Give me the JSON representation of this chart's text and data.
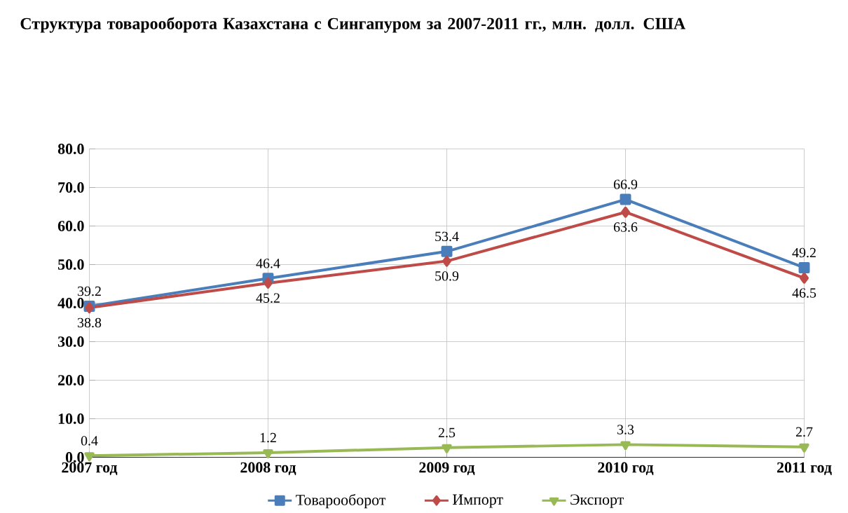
{
  "chart_data": {
    "type": "line",
    "title": "Структура товарооборота Казахстана с Сингапуром за 2007-2011 гг., млн. долл. США",
    "categories": [
      "2007 год",
      "2008 год",
      "2009 год",
      "2010 год",
      "2011 год"
    ],
    "series": [
      {
        "name": "Товарооборот",
        "color": "#4a7ebb",
        "marker": "square",
        "values": [
          39.2,
          46.4,
          53.4,
          66.9,
          49.2
        ]
      },
      {
        "name": "Импорт",
        "color": "#be4b48",
        "marker": "diamond",
        "values": [
          38.8,
          45.2,
          50.9,
          63.6,
          46.5
        ]
      },
      {
        "name": "Экспорт",
        "color": "#98b954",
        "marker": "triangle",
        "values": [
          0.4,
          1.2,
          2.5,
          3.3,
          2.7
        ]
      }
    ],
    "ylim": [
      0,
      80
    ],
    "yticks": [
      {
        "value": 0,
        "label": "0.0"
      },
      {
        "value": 10,
        "label": "10.0"
      },
      {
        "value": 20,
        "label": "20.0"
      },
      {
        "value": 30,
        "label": "30.0"
      },
      {
        "value": 40,
        "label": "40.0"
      },
      {
        "value": 50,
        "label": "50.0"
      },
      {
        "value": 60,
        "label": "60.0"
      },
      {
        "value": 70,
        "label": "70.0"
      },
      {
        "value": 80,
        "label": "80.0"
      }
    ],
    "grid": true,
    "legend": "bottom",
    "data_labels": true,
    "line_style": "solid"
  }
}
